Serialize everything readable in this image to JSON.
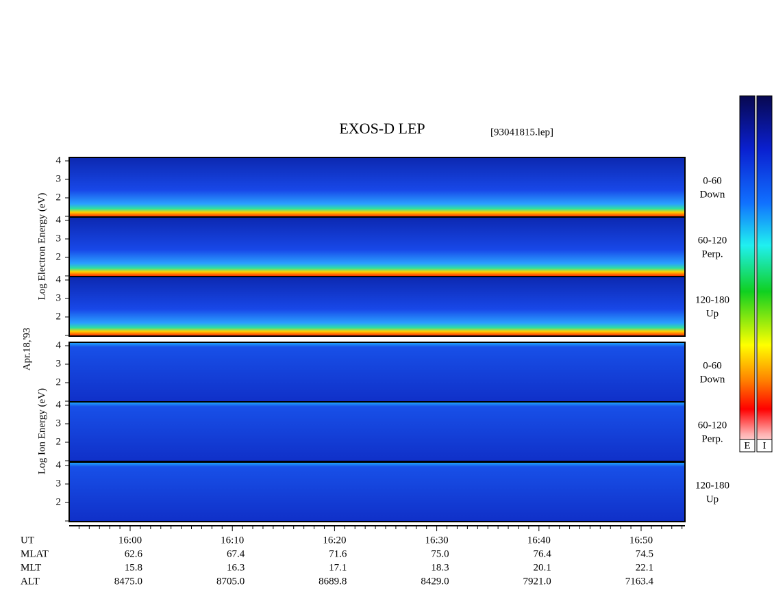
{
  "title": "EXOS-D LEP",
  "file": "[93041815.lep]",
  "date": "Apr.18,'93",
  "electron_axis_label": "Log  Electron  Energy  (eV)",
  "ion_axis_label": "Log  Ion  Energy  (eV)",
  "yticks": [
    2,
    3,
    4
  ],
  "panels": [
    {
      "lines": [
        "0-60",
        "Down"
      ]
    },
    {
      "lines": [
        "60-120",
        "Perp."
      ]
    },
    {
      "lines": [
        "120-180",
        "Up"
      ]
    },
    {
      "lines": [
        "0-60",
        "Down"
      ]
    },
    {
      "lines": [
        "60-120",
        "Perp."
      ]
    },
    {
      "lines": [
        "120-180",
        "Up"
      ]
    }
  ],
  "colorbars": [
    "E",
    "I"
  ],
  "rows": [
    {
      "name": "UT",
      "values": [
        "16:00",
        "16:10",
        "16:20",
        "16:30",
        "16:40",
        "16:50"
      ]
    },
    {
      "name": "MLAT",
      "values": [
        "62.6",
        "67.4",
        "71.6",
        "75.0",
        "76.4",
        "74.5"
      ]
    },
    {
      "name": "MLT",
      "values": [
        "15.8",
        "16.3",
        "17.1",
        "18.3",
        "20.1",
        "22.1"
      ]
    },
    {
      "name": "ALT",
      "values": [
        "8475.0",
        "8705.0",
        "8689.8",
        "8429.0",
        "7921.0",
        "7163.4"
      ]
    }
  ]
}
